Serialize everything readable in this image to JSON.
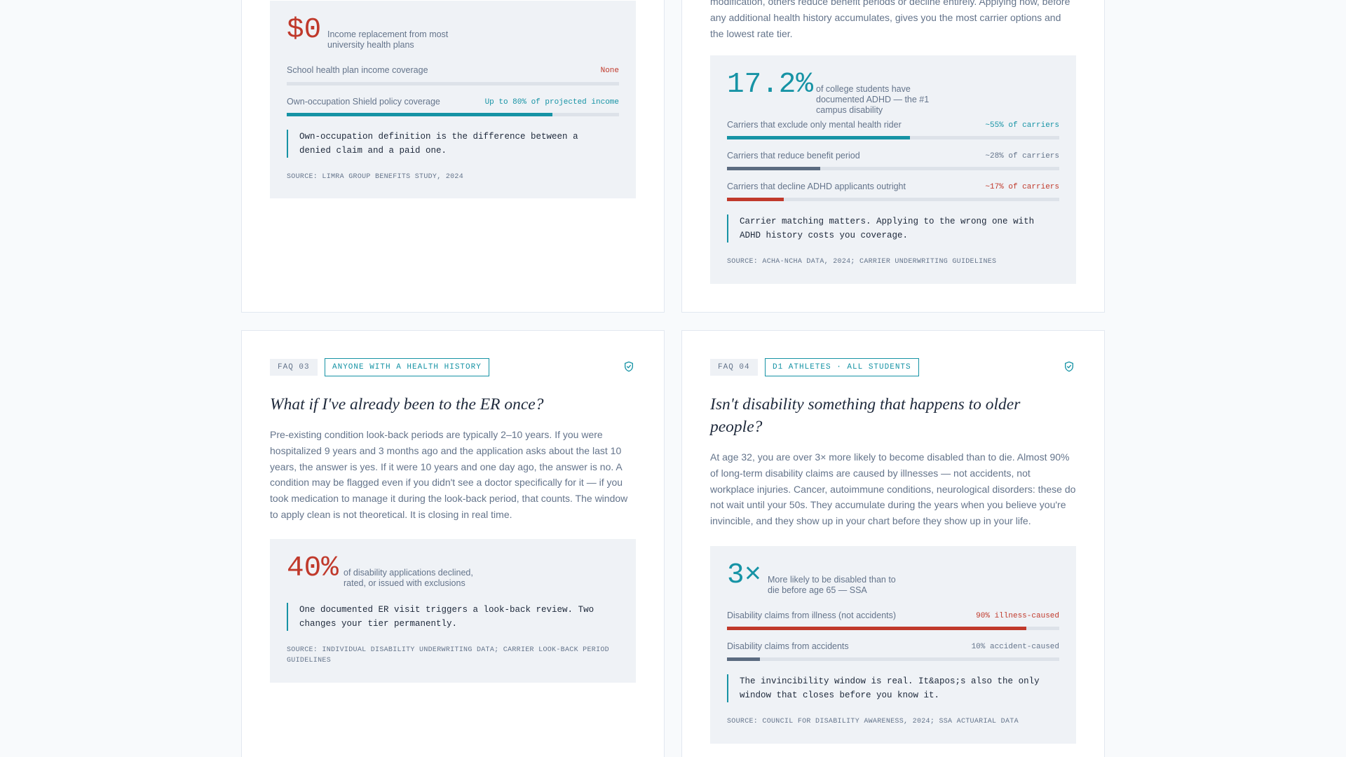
{
  "top_left_card": {
    "stat": {
      "value": "$0",
      "caption": "Income replacement from most university health plans",
      "rows": [
        {
          "label": "School health plan income coverage",
          "value": "None",
          "fill": 0
        },
        {
          "label": "Own-occupation Shield policy coverage",
          "value": "Up to 80% of projected income",
          "fill": 0.8
        }
      ],
      "quote": "Own-occupation definition is the difference between a denied claim and a paid one.",
      "source": "SOURCE: LIMRA GROUP BENEFITS STUDY, 2024"
    }
  },
  "top_right_card": {
    "body_tail": "modification, others reduce benefit periods or decline entirely. Applying now, before any additional health history accumulates, gives you the most carrier options and the lowest rate tier.",
    "stat": {
      "value": "17.2%",
      "caption": "of college students have documented ADHD — the #1 campus disability",
      "rows": [
        {
          "label": "Carriers that exclude only mental health rider",
          "value": "~55% of carriers",
          "fill": 0.55
        },
        {
          "label": "Carriers that reduce benefit period",
          "value": "~28% of carriers",
          "fill": 0.28
        },
        {
          "label": "Carriers that decline ADHD applicants outright",
          "value": "~17% of carriers",
          "fill": 0.17
        }
      ],
      "quote": "Carrier matching matters. Applying to the wrong one with ADHD history costs you coverage.",
      "source": "SOURCE: ACHA-NCHA DATA, 2024; CARRIER UNDERWRITING GUIDELINES"
    }
  },
  "faq03": {
    "tag": "FAQ 03",
    "audience": "ANYONE WITH A HEALTH HISTORY",
    "title": "What if I've already been to the ER once?",
    "body": "Pre-existing condition look-back periods are typically 2–10 years. If you were hospitalized 9 years and 3 months ago and the application asks about the last 10 years, the answer is yes. If it were 10 years and one day ago, the answer is no. A condition may be flagged even if you didn't see a doctor specifically for it — if you took medication to manage it during the look-back period, that counts. The window to apply clean is not theoretical. It is closing in real time.",
    "stat": {
      "value": "40%",
      "caption": "of disability applications declined, rated, or issued with exclusions",
      "quote": "One documented ER visit triggers a look-back review. Two changes your tier permanently.",
      "source": "SOURCE: INDIVIDUAL DISABILITY UNDERWRITING DATA; CARRIER LOOK-BACK PERIOD GUIDELINES"
    }
  },
  "faq04": {
    "tag": "FAQ 04",
    "audience": "D1 ATHLETES · ALL STUDENTS",
    "title": "Isn't disability something that happens to older people?",
    "body": "At age 32, you are over 3× more likely to become disabled than to die. Almost 90% of long-term disability claims are caused by illnesses — not accidents, not workplace injuries. Cancer, autoimmune conditions, neurological disorders: these do not wait until your 50s. They accumulate during the years when you believe you're invincible, and they show up in your chart before they show up in your life.",
    "stat": {
      "value": "3×",
      "caption": "More likely to be disabled than to die before age 65 — SSA",
      "rows": [
        {
          "label": "Disability claims from illness (not accidents)",
          "value": "90% illness-caused",
          "fill": 0.9
        },
        {
          "label": "Disability claims from accidents",
          "value": "10% accident-caused",
          "fill": 0.1
        }
      ],
      "quote": "The invincibility window is real. It&apos;s also the only window that closes before you know it.",
      "source": "SOURCE: COUNCIL FOR DISABILITY AWARENESS, 2024; SSA ACTUARIAL DATA"
    }
  },
  "colors": {
    "red": "#c0392b",
    "teal": "#1693a5",
    "slate": "#64748b",
    "track": "#dde2e9"
  },
  "icons": {
    "badge": "shield-check-icon"
  }
}
